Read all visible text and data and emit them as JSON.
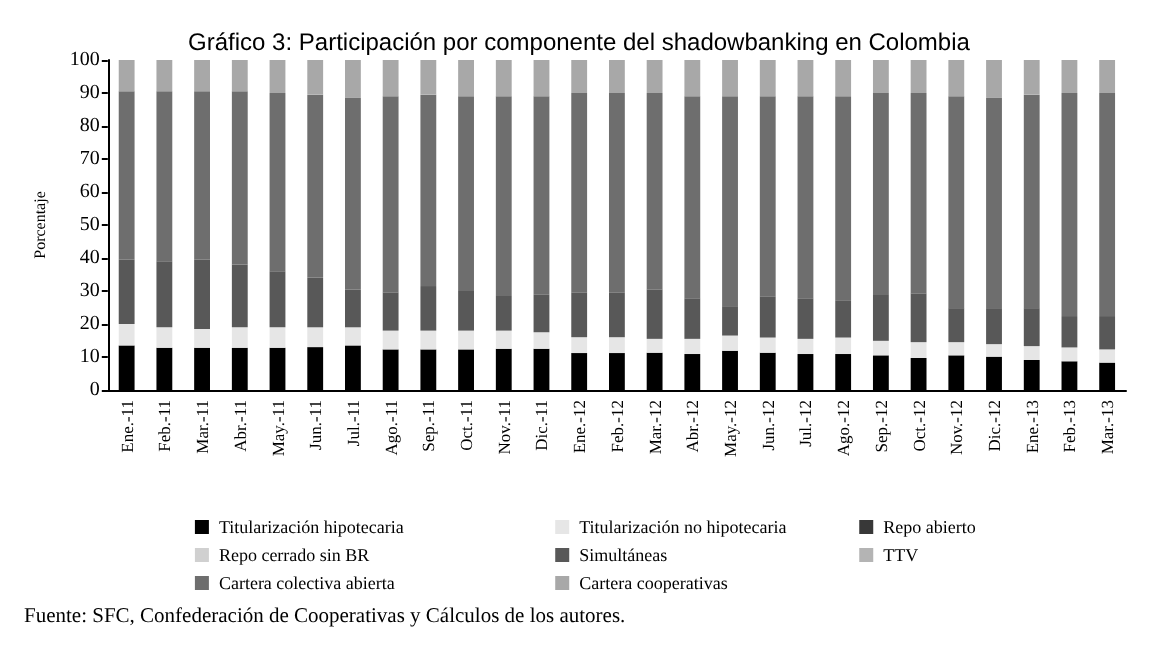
{
  "chart_data": {
    "type": "bar",
    "stacked": true,
    "title": "Gráfico 3: Participación por componente del shadowbanking en Colombia",
    "ylabel": "Porcentaje",
    "categories": [
      "Ene.-11",
      "Feb.-11",
      "Mar.-11",
      "Abr.-11",
      "May.-11",
      "Jun.-11",
      "Jul.-11",
      "Ago.-11",
      "Sep.-11",
      "Oct.-11",
      "Nov.-11",
      "Dic.-11",
      "Ene.-12",
      "Feb.-12",
      "Mar.-12",
      "Abr.-12",
      "May.-12",
      "Jun.-12",
      "Jul.-12",
      "Ago.-12",
      "Sep.-12",
      "Oct.-12",
      "Nov.-12",
      "Dic.-12",
      "Ene.-13",
      "Feb.-13",
      "Mar.-13"
    ],
    "ylim": [
      0,
      100
    ],
    "yticks": [
      0,
      10,
      20,
      30,
      40,
      50,
      60,
      70,
      80,
      90,
      100
    ],
    "grid": false,
    "legend": "bottom",
    "annotations": [
      "Fuente: SFC, Confederación de Cooperativas y Cálculos de los autores."
    ],
    "series": [
      {
        "name": "Titularización hipotecaria",
        "color": "#000000",
        "values": [
          13.5,
          12.8,
          12.8,
          12.8,
          12.8,
          13,
          13.5,
          12.3,
          12.3,
          12.3,
          12.5,
          12.5,
          11.2,
          11.2,
          11.3,
          10.9,
          11.9,
          11.3,
          10.9,
          10.9,
          10.5,
          9.7,
          10.5,
          10.1,
          9.1,
          8.7,
          8.3
        ]
      },
      {
        "name": "Titularización no hipotecaria",
        "color": "#e6e6e6",
        "values": [
          6.5,
          6.2,
          5.7,
          6.2,
          6.2,
          6,
          5.5,
          5.7,
          5.7,
          5.7,
          5.5,
          5,
          4.8,
          4.8,
          4.2,
          4.6,
          4.6,
          4.6,
          4.6,
          5,
          4.4,
          4.8,
          4,
          3.8,
          4.2,
          4.2,
          4
        ]
      },
      {
        "name": "Repo abierto",
        "color": "#383838",
        "values": [
          null,
          null,
          null,
          null,
          null,
          null,
          null,
          null,
          null,
          null,
          null,
          null,
          null,
          null,
          null,
          null,
          null,
          null,
          null,
          null,
          null,
          null,
          null,
          null,
          null,
          null,
          null
        ]
      },
      {
        "name": "Repo cerrado sin BR",
        "color": "#d0d0d0",
        "values": [
          null,
          null,
          null,
          null,
          null,
          null,
          null,
          null,
          null,
          null,
          null,
          null,
          null,
          null,
          null,
          null,
          null,
          null,
          null,
          null,
          null,
          null,
          null,
          null,
          null,
          null,
          null
        ]
      },
      {
        "name": "Simultáneas",
        "color": "#585858",
        "values": [
          19.5,
          20,
          21,
          19,
          17,
          15,
          11.5,
          11.5,
          13.5,
          12,
          10.5,
          11.5,
          13.5,
          13.5,
          14.9,
          12.3,
          8.9,
          12.5,
          12.3,
          11.3,
          13.9,
          14.7,
          10.3,
          10.9,
          11.5,
          9.5,
          10.1
        ]
      },
      {
        "name": "TTV",
        "color": "#b4b4b4",
        "values": [
          null,
          null,
          null,
          null,
          null,
          null,
          null,
          null,
          null,
          null,
          null,
          null,
          null,
          null,
          null,
          null,
          null,
          null,
          null,
          null,
          null,
          null,
          null,
          null,
          null,
          null,
          null
        ]
      },
      {
        "name": "Cartera colectiva abierta",
        "color": "#6e6e6e",
        "values": [
          51,
          51.5,
          51,
          52.5,
          54,
          55.5,
          58,
          59.5,
          58,
          59,
          60.5,
          60,
          60.5,
          60.5,
          59.6,
          61.2,
          63.6,
          60.6,
          61.2,
          61.8,
          61.2,
          60.8,
          64.2,
          63.7,
          64.7,
          67.6,
          67.6
        ]
      },
      {
        "name": "Cartera cooperativas",
        "color": "#a8a8a8",
        "values": [
          9.5,
          9.5,
          9.5,
          9.5,
          10,
          10.5,
          11.5,
          11,
          10.5,
          11,
          11,
          11,
          10,
          10,
          10,
          11,
          11,
          11,
          11,
          11,
          10,
          10,
          11,
          11.5,
          10.5,
          10,
          10
        ]
      }
    ]
  }
}
